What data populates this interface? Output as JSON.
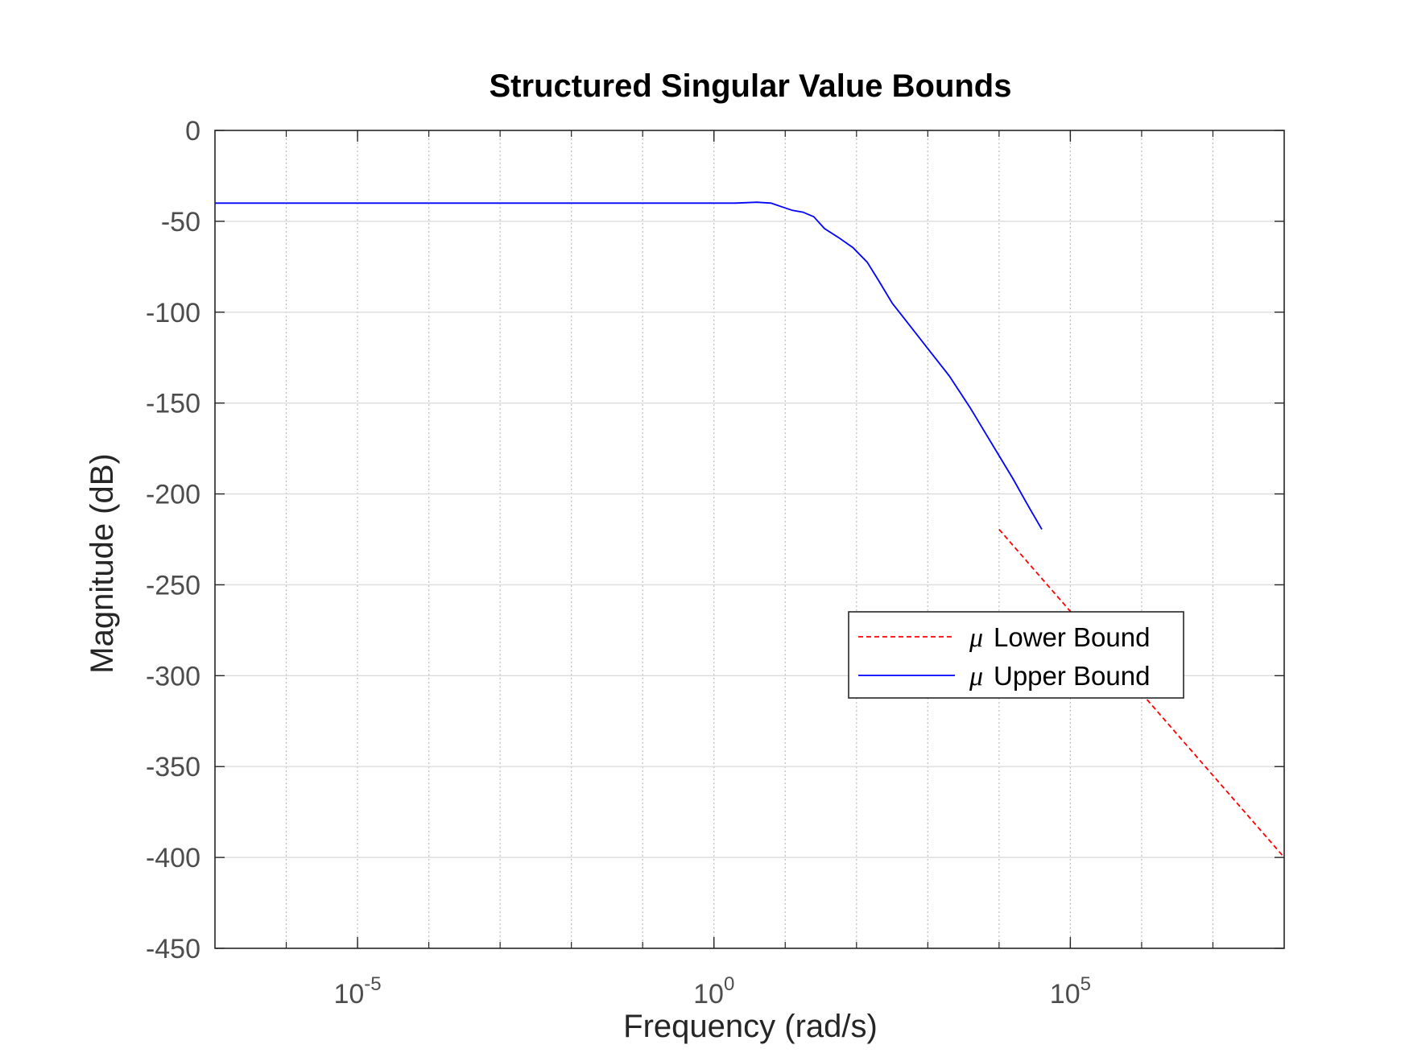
{
  "chart_data": {
    "type": "line",
    "title": "Structured Singular Value Bounds",
    "xlabel": "Frequency  (rad/s)",
    "ylabel": "Magnitude (dB)",
    "xscale": "log",
    "xlim_log10": [
      -7,
      8
    ],
    "ylim": [
      -450,
      0
    ],
    "yticks": [
      0,
      -50,
      -100,
      -150,
      -200,
      -250,
      -300,
      -350,
      -400,
      -450
    ],
    "ytick_labels": [
      "0",
      "-50",
      "-100",
      "-150",
      "-200",
      "-250",
      "-300",
      "-350",
      "-400",
      "-450"
    ],
    "xticks": [
      {
        "base": "10",
        "exp": "-5",
        "log10": -5
      },
      {
        "base": "10",
        "exp": "0",
        "log10": 0
      },
      {
        "base": "10",
        "exp": "5",
        "log10": 5
      }
    ],
    "grid": true,
    "legend_position": "center-right",
    "series": [
      {
        "name": "Lower Bound",
        "legend_symbol": "μ",
        "color": "#ff0000",
        "style": "dashed",
        "points": [
          [
            4,
            -219.5
          ],
          [
            8,
            -400
          ]
        ]
      },
      {
        "name": "Upper Bound",
        "legend_symbol": "μ",
        "color": "#0000ff",
        "style": "solid",
        "points": [
          [
            -7,
            -40
          ],
          [
            -4,
            -40
          ],
          [
            -1,
            -40
          ],
          [
            0,
            -40
          ],
          [
            0.3,
            -40
          ],
          [
            0.6,
            -39.5
          ],
          [
            0.8,
            -40
          ],
          [
            0.95,
            -42
          ],
          [
            1.1,
            -44
          ],
          [
            1.25,
            -45
          ],
          [
            1.4,
            -47.5
          ],
          [
            1.55,
            -54
          ],
          [
            1.75,
            -59
          ],
          [
            1.95,
            -64.5
          ],
          [
            2.15,
            -72.5
          ],
          [
            2.3,
            -82
          ],
          [
            2.5,
            -95
          ],
          [
            2.7,
            -105
          ],
          [
            3.0,
            -120
          ],
          [
            3.3,
            -135
          ],
          [
            3.6,
            -153
          ],
          [
            3.8,
            -166
          ],
          [
            4.0,
            -179
          ],
          [
            4.2,
            -192
          ],
          [
            4.4,
            -206
          ],
          [
            4.6,
            -219.5
          ]
        ]
      }
    ]
  }
}
